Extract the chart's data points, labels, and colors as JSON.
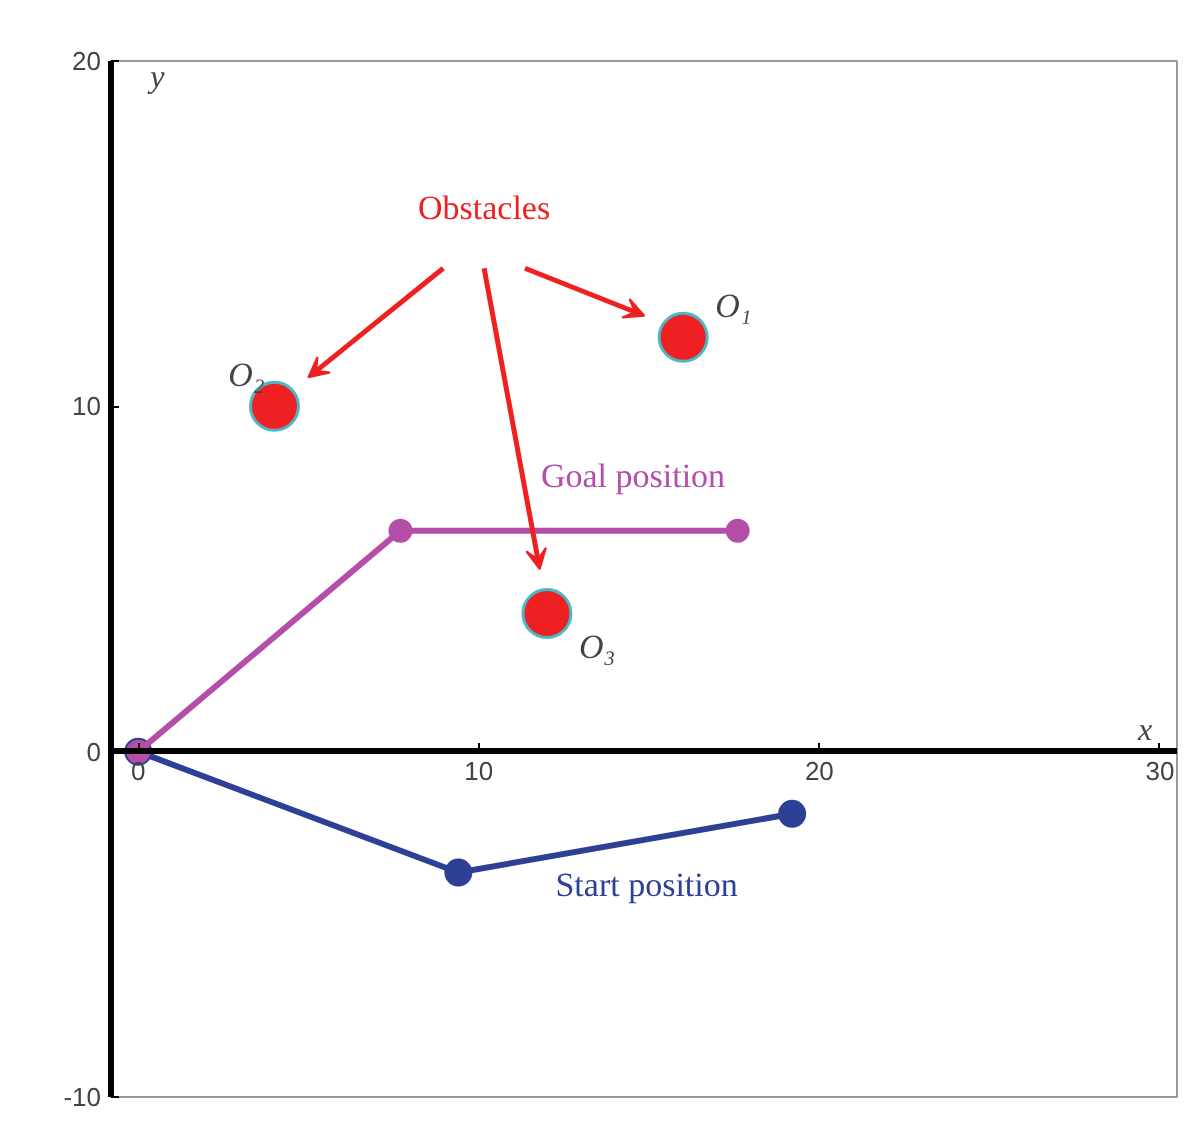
{
  "chart_data": {
    "type": "line",
    "xlabel": "x⃗",
    "ylabel": "y⃗",
    "xlim": [
      -0.8,
      30.5
    ],
    "ylim": [
      -10,
      20
    ],
    "xticks": [
      0,
      10,
      20,
      30
    ],
    "yticks": [
      -10,
      0,
      10,
      20
    ],
    "grid": false,
    "legend": false,
    "marker": "circle",
    "line_style": "solid",
    "series": [
      {
        "name": "Start position",
        "color": "#2e3f96",
        "x": [
          0,
          9.4,
          19.2
        ],
        "values": [
          0,
          -3.5,
          -1.8
        ]
      },
      {
        "name": "Goal position",
        "color": "#b54ea8",
        "x": [
          0,
          7.7,
          17.6
        ],
        "values": [
          0,
          6.4,
          6.4
        ]
      },
      {
        "name": "Obstacles",
        "type": "scatter",
        "color": "#ee2022",
        "x": [
          16,
          4,
          12
        ],
        "values": [
          12,
          10,
          4
        ]
      }
    ],
    "annotations": [
      {
        "text": "O₁",
        "x": 16,
        "y": 12
      },
      {
        "text": "O₂",
        "x": 4,
        "y": 10
      },
      {
        "text": "O₃",
        "x": 12,
        "y": 4
      }
    ]
  }
}
